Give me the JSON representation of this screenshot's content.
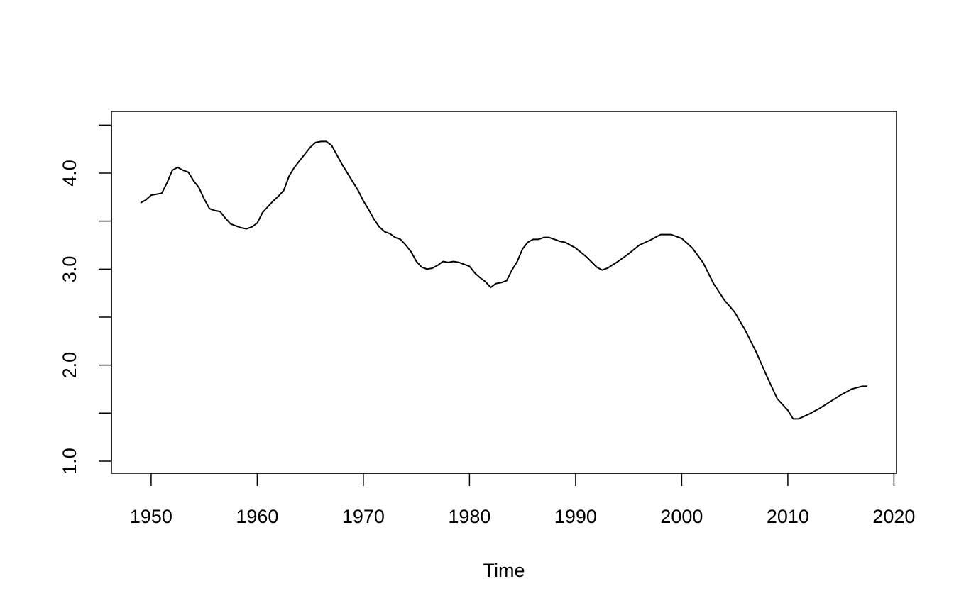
{
  "chart_data": {
    "type": "line",
    "xlabel": "Time",
    "color": "#000000",
    "x": [
      1949,
      1949.5,
      1950,
      1951,
      1951.5,
      1952,
      1952.5,
      1953,
      1953.5,
      1954,
      1954.5,
      1955,
      1955.5,
      1956,
      1956.5,
      1957,
      1957.5,
      1958,
      1958.5,
      1959,
      1959.5,
      1960,
      1960.5,
      1961,
      1961.5,
      1962,
      1962.5,
      1963,
      1963.5,
      1964,
      1964.5,
      1965,
      1965.5,
      1966,
      1966.5,
      1967,
      1967.5,
      1968,
      1968.5,
      1969,
      1969.5,
      1970,
      1970.5,
      1971,
      1971.5,
      1972,
      1972.5,
      1973,
      1973.5,
      1974,
      1974.5,
      1975,
      1975.5,
      1976,
      1976.5,
      1977,
      1977.5,
      1978,
      1978.5,
      1979,
      1979.5,
      1980,
      1980.5,
      1981,
      1981.5,
      1982,
      1982.5,
      1983,
      1983.5,
      1984,
      1984.5,
      1985,
      1985.5,
      1986,
      1986.5,
      1987,
      1987.5,
      1988,
      1988.5,
      1989,
      1989.5,
      1990,
      1991,
      1992,
      1992.5,
      1993,
      1994,
      1995,
      1996,
      1997,
      1998,
      1999,
      2000,
      2001,
      2002,
      2003,
      2004,
      2005,
      2006,
      2007,
      2008,
      2009,
      2010,
      2010.5,
      2011,
      2012,
      2013,
      2014,
      2015,
      2016,
      2017,
      2017.5
    ],
    "values": [
      3.69,
      3.72,
      3.77,
      3.79,
      3.9,
      4.03,
      4.06,
      4.03,
      4.01,
      3.92,
      3.85,
      3.73,
      3.63,
      3.61,
      3.6,
      3.53,
      3.47,
      3.45,
      3.43,
      3.42,
      3.44,
      3.48,
      3.59,
      3.65,
      3.71,
      3.76,
      3.82,
      3.97,
      4.06,
      4.13,
      4.2,
      4.27,
      4.32,
      4.33,
      4.33,
      4.29,
      4.19,
      4.09,
      4.0,
      3.91,
      3.82,
      3.71,
      3.62,
      3.52,
      3.44,
      3.39,
      3.37,
      3.33,
      3.31,
      3.25,
      3.18,
      3.08,
      3.02,
      3.0,
      3.01,
      3.04,
      3.08,
      3.07,
      3.08,
      3.07,
      3.05,
      3.03,
      2.96,
      2.91,
      2.87,
      2.81,
      2.85,
      2.86,
      2.88,
      2.99,
      3.08,
      3.21,
      3.28,
      3.31,
      3.31,
      3.33,
      3.33,
      3.31,
      3.29,
      3.28,
      3.25,
      3.22,
      3.13,
      3.02,
      2.99,
      3.01,
      3.08,
      3.16,
      3.25,
      3.3,
      3.36,
      3.36,
      3.32,
      3.22,
      3.07,
      2.85,
      2.68,
      2.55,
      2.36,
      2.14,
      1.89,
      1.65,
      1.53,
      1.44,
      1.44,
      1.49,
      1.55,
      1.62,
      1.69,
      1.75,
      1.78,
      1.78
    ],
    "xlim": [
      1946.26,
      2020.24
    ],
    "xticks": [
      1950,
      1960,
      1970,
      1980,
      1990,
      2000,
      2010,
      2020
    ],
    "ylim": [
      0.874,
      4.643
    ],
    "yticks": [
      {
        "value": 1,
        "label": "1.0"
      },
      {
        "value": 1.5,
        "label": null
      },
      {
        "value": 2,
        "label": "2.0"
      },
      {
        "value": 2.5,
        "label": null
      },
      {
        "value": 3,
        "label": "3.0"
      },
      {
        "value": 3.5,
        "label": null
      },
      {
        "value": 4,
        "label": "4.0"
      },
      {
        "value": 4.5,
        "label": null
      }
    ]
  }
}
